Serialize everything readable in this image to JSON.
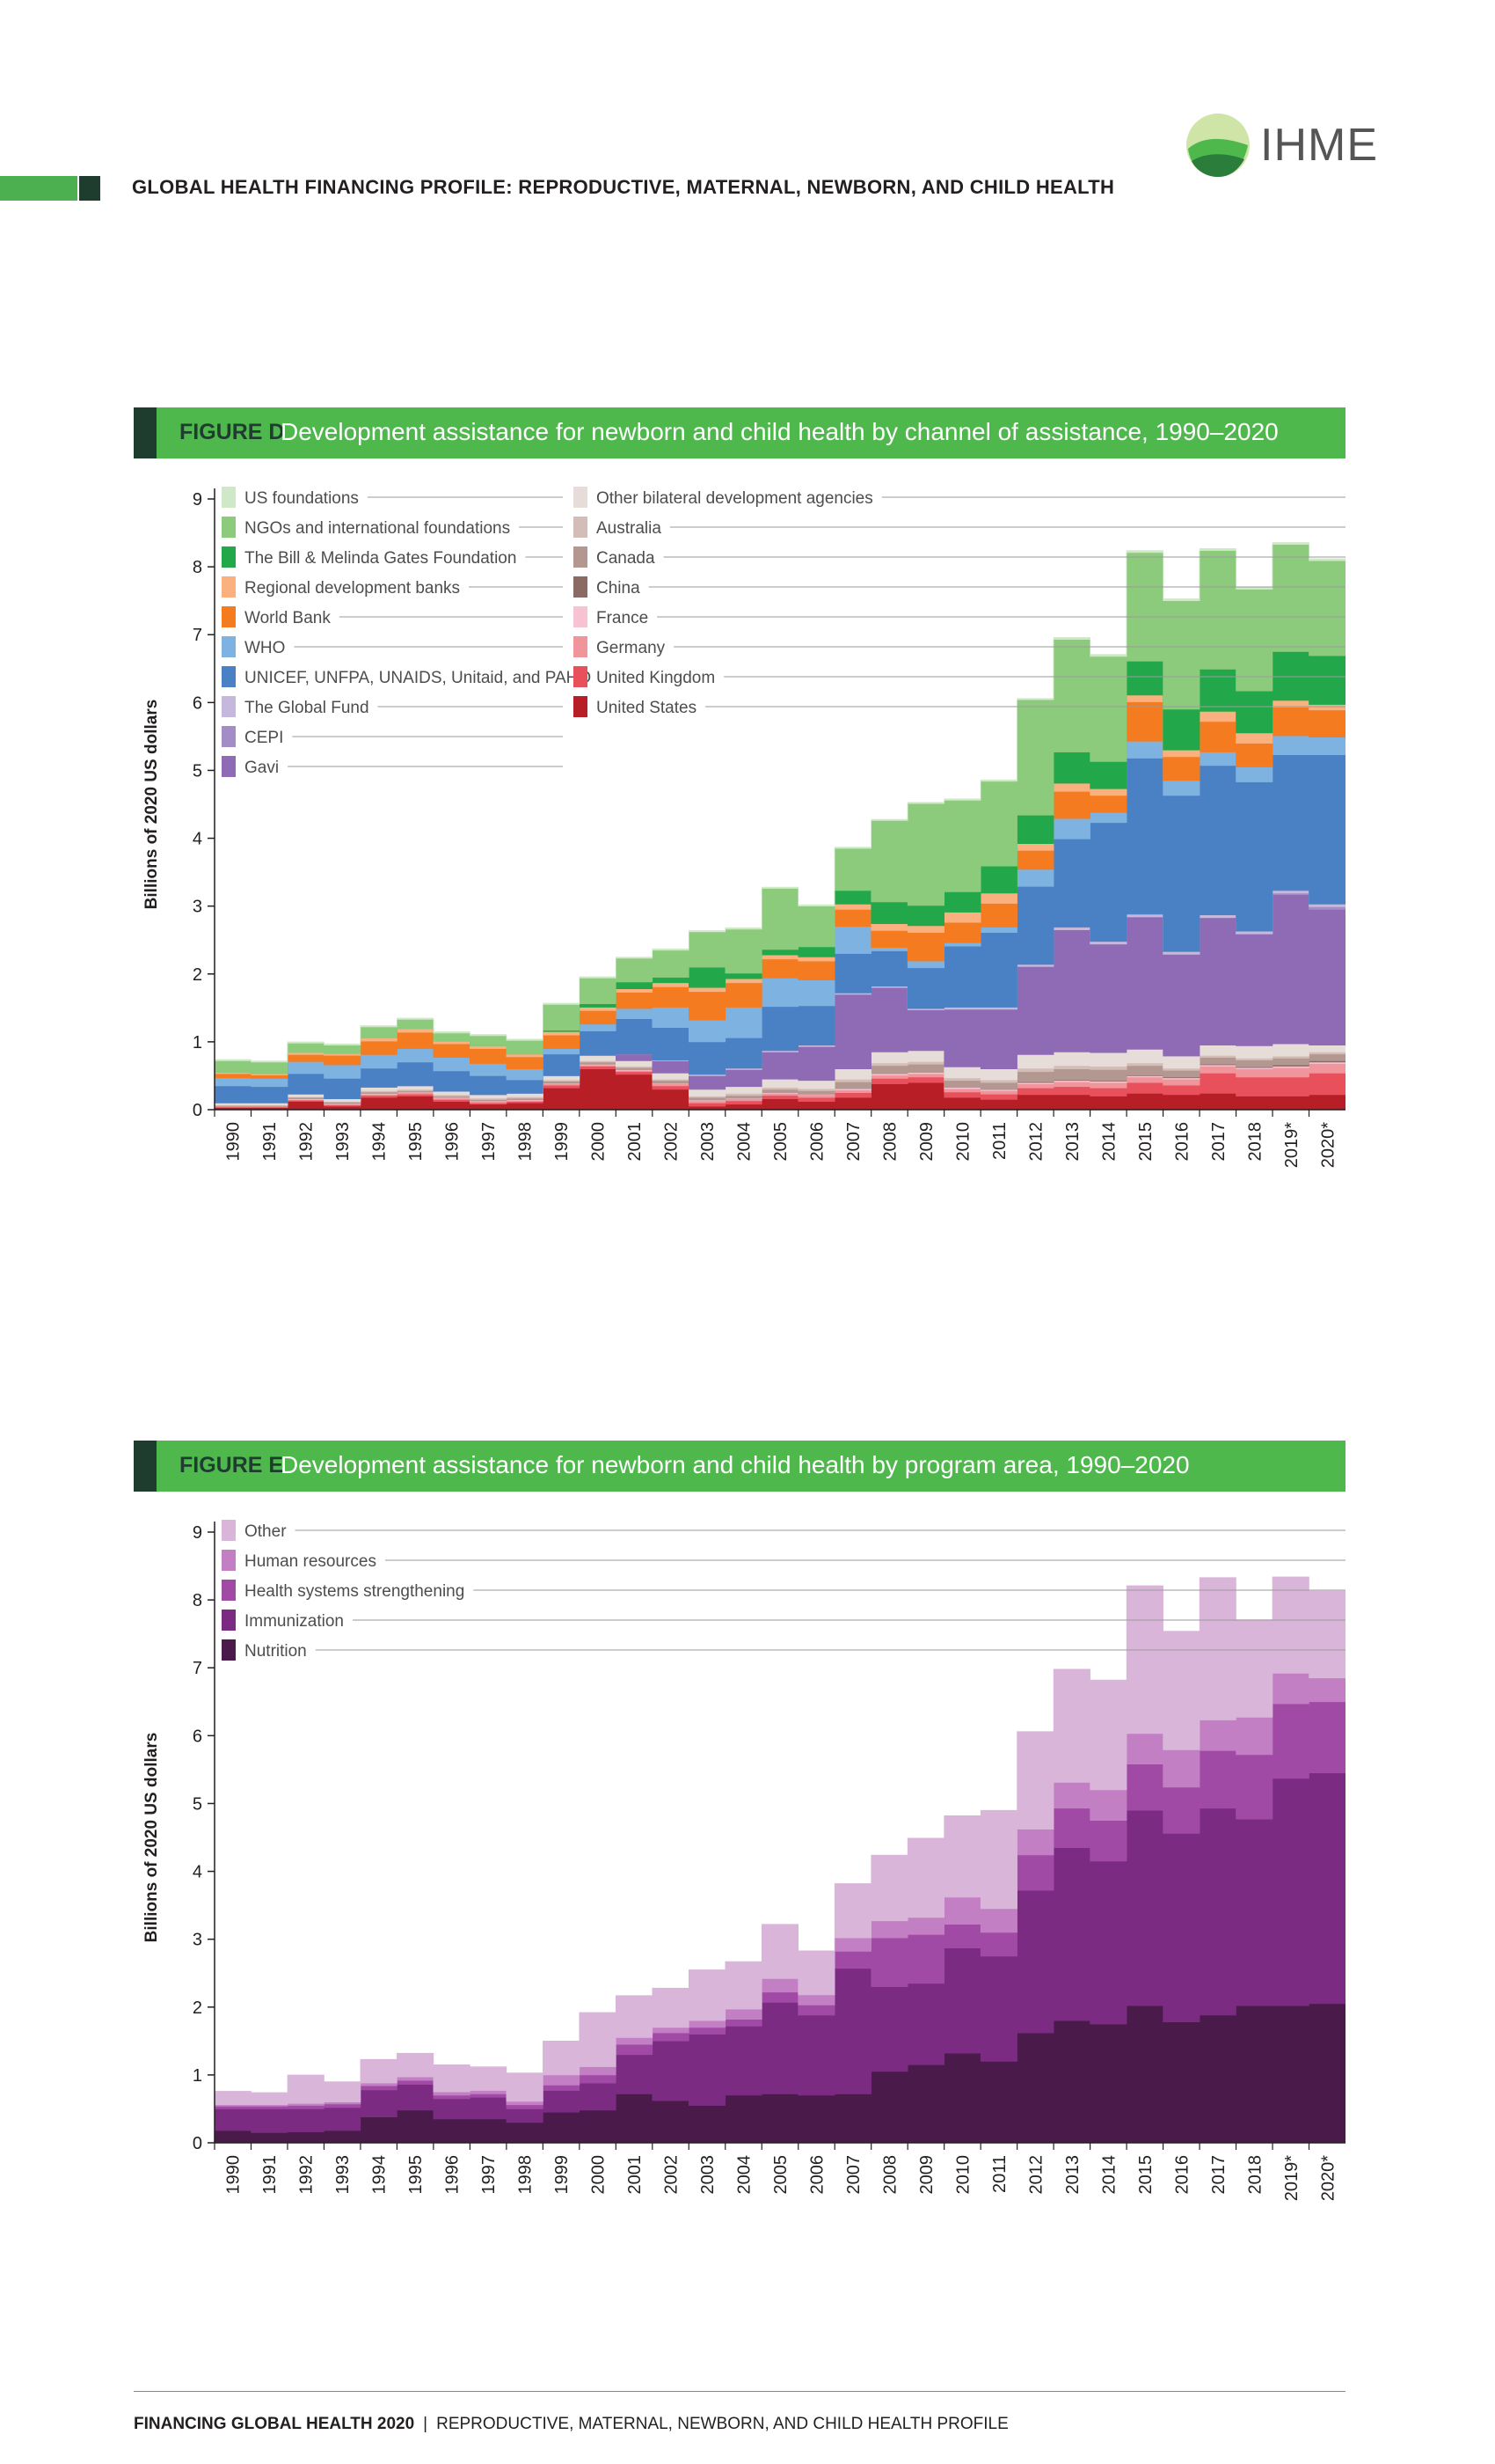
{
  "header": {
    "title": "GLOBAL HEALTH FINANCING PROFILE: REPRODUCTIVE, MATERNAL, NEWBORN, AND CHILD HEALTH",
    "logo_text": "IHME"
  },
  "footer": {
    "bold": "FINANCING GLOBAL HEALTH 2020",
    "separator": "|",
    "rest": "REPRODUCTIVE, MATERNAL, NEWBORN, AND CHILD HEALTH PROFILE"
  },
  "colors": {
    "brand_green": "#4fb84c",
    "dark_green": "#1e3d2f"
  },
  "figures": [
    {
      "label": "FIGURE D",
      "title": "Development assistance for newborn and child health by channel of assistance, 1990–2020"
    },
    {
      "label": "FIGURE E",
      "title": "Development assistance for newborn and child health by program area, 1990–2020"
    }
  ],
  "chart_data": [
    {
      "type": "area",
      "ylabel": "Billions of 2020 US dollars",
      "ylim": [
        0,
        9
      ],
      "yticks": [
        "0",
        "1",
        "2",
        "3",
        "4",
        "5",
        "6",
        "7",
        "8",
        "9"
      ],
      "categories": [
        "1990",
        "1991",
        "1992",
        "1993",
        "1994",
        "1995",
        "1996",
        "1997",
        "1998",
        "1999",
        "2000",
        "2001",
        "2002",
        "2003",
        "2004",
        "2005",
        "2006",
        "2007",
        "2008",
        "2009",
        "2010",
        "2011",
        "2012",
        "2013",
        "2014",
        "2015",
        "2016",
        "2017",
        "2018",
        "2019*",
        "2020*"
      ],
      "legend_columns": [
        [
          "US foundations",
          "NGOs and international foundations",
          "The Bill & Melinda Gates Foundation",
          "Regional development banks",
          "World Bank",
          "WHO",
          "UNICEF, UNFPA, UNAIDS, Unitaid, and PAHO",
          "The Global Fund",
          "CEPI",
          "Gavi"
        ],
        [
          "Other bilateral development agencies",
          "Australia",
          "Canada",
          "China",
          "France",
          "Germany",
          "United Kingdom",
          "United States"
        ]
      ],
      "series": [
        {
          "name": "United States",
          "color": "#b81e26",
          "values": [
            0.03,
            0.03,
            0.12,
            0.05,
            0.18,
            0.2,
            0.12,
            0.08,
            0.1,
            0.32,
            0.6,
            0.52,
            0.3,
            0.05,
            0.08,
            0.16,
            0.12,
            0.18,
            0.38,
            0.4,
            0.18,
            0.15,
            0.22,
            0.22,
            0.2,
            0.24,
            0.22,
            0.24,
            0.2,
            0.2,
            0.22
          ]
        },
        {
          "name": "United Kingdom",
          "color": "#e8505b",
          "values": [
            0.01,
            0.01,
            0.02,
            0.02,
            0.03,
            0.03,
            0.03,
            0.02,
            0.02,
            0.04,
            0.04,
            0.04,
            0.05,
            0.05,
            0.05,
            0.05,
            0.06,
            0.07,
            0.08,
            0.08,
            0.08,
            0.08,
            0.1,
            0.12,
            0.12,
            0.16,
            0.14,
            0.3,
            0.28,
            0.28,
            0.32
          ]
        },
        {
          "name": "Germany",
          "color": "#f0959c",
          "values": [
            0.01,
            0.01,
            0.01,
            0.01,
            0.02,
            0.02,
            0.02,
            0.02,
            0.02,
            0.02,
            0.02,
            0.02,
            0.03,
            0.03,
            0.03,
            0.03,
            0.04,
            0.04,
            0.05,
            0.05,
            0.05,
            0.05,
            0.06,
            0.07,
            0.08,
            0.08,
            0.09,
            0.1,
            0.12,
            0.14,
            0.14
          ]
        },
        {
          "name": "France",
          "color": "#f7c2d2",
          "values": [
            0.0,
            0.0,
            0.01,
            0.01,
            0.01,
            0.01,
            0.01,
            0.01,
            0.01,
            0.01,
            0.01,
            0.01,
            0.01,
            0.01,
            0.01,
            0.01,
            0.01,
            0.02,
            0.02,
            0.02,
            0.02,
            0.02,
            0.02,
            0.02,
            0.02,
            0.02,
            0.02,
            0.02,
            0.02,
            0.02,
            0.02
          ]
        },
        {
          "name": "China",
          "color": "#8a6a63",
          "values": [
            0,
            0,
            0,
            0,
            0,
            0,
            0,
            0,
            0,
            0,
            0,
            0,
            0,
            0,
            0,
            0,
            0,
            0,
            0,
            0,
            0,
            0,
            0.01,
            0.01,
            0.01,
            0.01,
            0.01,
            0.01,
            0.01,
            0.02,
            0.02
          ]
        },
        {
          "name": "Canada",
          "color": "#b39891",
          "values": [
            0.01,
            0.01,
            0.02,
            0.02,
            0.02,
            0.02,
            0.02,
            0.02,
            0.02,
            0.03,
            0.03,
            0.03,
            0.04,
            0.04,
            0.04,
            0.05,
            0.05,
            0.1,
            0.12,
            0.12,
            0.1,
            0.1,
            0.15,
            0.16,
            0.16,
            0.14,
            0.1,
            0.1,
            0.1,
            0.1,
            0.1
          ]
        },
        {
          "name": "Australia",
          "color": "#d4bdb7",
          "values": [
            0.01,
            0.01,
            0.01,
            0.01,
            0.02,
            0.02,
            0.02,
            0.02,
            0.02,
            0.02,
            0.02,
            0.02,
            0.02,
            0.02,
            0.03,
            0.03,
            0.03,
            0.04,
            0.04,
            0.04,
            0.04,
            0.04,
            0.05,
            0.05,
            0.05,
            0.04,
            0.03,
            0.03,
            0.03,
            0.03,
            0.03
          ]
        },
        {
          "name": "Other bilateral development agencies",
          "color": "#e6ddd9",
          "values": [
            0.03,
            0.03,
            0.04,
            0.04,
            0.05,
            0.05,
            0.05,
            0.05,
            0.05,
            0.06,
            0.08,
            0.08,
            0.09,
            0.1,
            0.1,
            0.12,
            0.12,
            0.15,
            0.16,
            0.16,
            0.16,
            0.16,
            0.2,
            0.2,
            0.2,
            0.2,
            0.18,
            0.15,
            0.18,
            0.18,
            0.1
          ]
        },
        {
          "name": "Gavi",
          "color": "#8f6bb5",
          "values": [
            0,
            0,
            0,
            0,
            0,
            0,
            0,
            0,
            0,
            0,
            0,
            0.1,
            0.18,
            0.2,
            0.25,
            0.4,
            0.5,
            1.1,
            0.95,
            0.6,
            0.85,
            0.88,
            1.3,
            1.8,
            1.6,
            1.95,
            1.5,
            1.88,
            1.65,
            2.2,
            2.0
          ]
        },
        {
          "name": "CEPI",
          "color": "#a48cc7",
          "values": [
            0,
            0,
            0,
            0,
            0,
            0,
            0,
            0,
            0,
            0,
            0,
            0,
            0,
            0,
            0,
            0,
            0,
            0,
            0,
            0,
            0,
            0,
            0,
            0,
            0,
            0,
            0,
            0,
            0,
            0.02,
            0.04
          ]
        },
        {
          "name": "The Global Fund",
          "color": "#c6b8dd",
          "values": [
            0,
            0,
            0,
            0,
            0,
            0,
            0,
            0,
            0,
            0,
            0,
            0,
            0.01,
            0.02,
            0.02,
            0.02,
            0.02,
            0.02,
            0.02,
            0.02,
            0.03,
            0.03,
            0.03,
            0.04,
            0.04,
            0.04,
            0.04,
            0.04,
            0.04,
            0.04,
            0.04
          ]
        },
        {
          "name": "UNICEF, UNFPA, UNAIDS, Unitaid, and PAHO",
          "color": "#4a81c4",
          "values": [
            0.25,
            0.24,
            0.3,
            0.3,
            0.28,
            0.35,
            0.3,
            0.28,
            0.2,
            0.32,
            0.36,
            0.52,
            0.48,
            0.48,
            0.45,
            0.65,
            0.58,
            0.58,
            0.52,
            0.6,
            0.9,
            1.1,
            1.15,
            1.3,
            1.75,
            2.3,
            2.3,
            2.2,
            2.2,
            2.0,
            2.2
          ]
        },
        {
          "name": "WHO",
          "color": "#7eb2e0",
          "values": [
            0.12,
            0.12,
            0.18,
            0.2,
            0.2,
            0.2,
            0.2,
            0.18,
            0.16,
            0.08,
            0.1,
            0.15,
            0.3,
            0.32,
            0.45,
            0.42,
            0.38,
            0.4,
            0.05,
            0.1,
            0.05,
            0.08,
            0.25,
            0.3,
            0.15,
            0.25,
            0.22,
            0.2,
            0.22,
            0.28,
            0.26
          ]
        },
        {
          "name": "World Bank",
          "color": "#f47b20",
          "values": [
            0.06,
            0.05,
            0.1,
            0.14,
            0.2,
            0.24,
            0.2,
            0.22,
            0.18,
            0.2,
            0.2,
            0.24,
            0.3,
            0.42,
            0.36,
            0.28,
            0.28,
            0.25,
            0.25,
            0.42,
            0.3,
            0.35,
            0.28,
            0.4,
            0.25,
            0.58,
            0.35,
            0.45,
            0.35,
            0.42,
            0.4
          ]
        },
        {
          "name": "Regional development banks",
          "color": "#fbb07f",
          "values": [
            0.02,
            0.02,
            0.03,
            0.03,
            0.05,
            0.05,
            0.04,
            0.04,
            0.04,
            0.05,
            0.05,
            0.05,
            0.06,
            0.06,
            0.06,
            0.06,
            0.06,
            0.08,
            0.1,
            0.1,
            0.15,
            0.15,
            0.1,
            0.12,
            0.1,
            0.1,
            0.1,
            0.15,
            0.15,
            0.1,
            0.08
          ]
        },
        {
          "name": "The Bill & Melinda Gates Foundation",
          "color": "#22a84a",
          "values": [
            0,
            0,
            0,
            0,
            0,
            0,
            0,
            0,
            0,
            0.02,
            0.05,
            0.1,
            0.08,
            0.3,
            0.08,
            0.08,
            0.15,
            0.2,
            0.32,
            0.3,
            0.3,
            0.4,
            0.42,
            0.46,
            0.4,
            0.5,
            0.6,
            0.62,
            0.62,
            0.72,
            0.72
          ]
        },
        {
          "name": "NGOs and international foundations",
          "color": "#8dcb7c",
          "values": [
            0.17,
            0.17,
            0.14,
            0.12,
            0.16,
            0.14,
            0.12,
            0.15,
            0.2,
            0.38,
            0.38,
            0.35,
            0.4,
            0.52,
            0.65,
            0.9,
            0.6,
            0.62,
            1.2,
            1.5,
            1.35,
            1.25,
            1.7,
            1.66,
            1.55,
            1.6,
            1.6,
            1.75,
            1.5,
            1.58,
            1.4
          ]
        },
        {
          "name": "US foundations",
          "color": "#cfe9c8",
          "values": [
            0.02,
            0.02,
            0.02,
            0.02,
            0.02,
            0.02,
            0.02,
            0.02,
            0.02,
            0.02,
            0.02,
            0.02,
            0.02,
            0.02,
            0.02,
            0.02,
            0.02,
            0.02,
            0.02,
            0.02,
            0.02,
            0.02,
            0.02,
            0.03,
            0.03,
            0.03,
            0.03,
            0.03,
            0.03,
            0.03,
            0.03
          ]
        }
      ]
    },
    {
      "type": "area",
      "ylabel": "Billions of 2020 US dollars",
      "ylim": [
        0,
        9
      ],
      "yticks": [
        "0",
        "1",
        "2",
        "3",
        "4",
        "5",
        "6",
        "7",
        "8",
        "9"
      ],
      "categories": [
        "1990",
        "1991",
        "1992",
        "1993",
        "1994",
        "1995",
        "1996",
        "1997",
        "1998",
        "1999",
        "2000",
        "2001",
        "2002",
        "2003",
        "2004",
        "2005",
        "2006",
        "2007",
        "2008",
        "2009",
        "2010",
        "2011",
        "2012",
        "2013",
        "2014",
        "2015",
        "2016",
        "2017",
        "2018",
        "2019*",
        "2020*"
      ],
      "legend_columns": [
        [
          "Other",
          "Human resources",
          "Health systems strengthening",
          "Immunization",
          "Nutrition"
        ]
      ],
      "series": [
        {
          "name": "Nutrition",
          "color": "#4a1a4a",
          "values": [
            0.18,
            0.15,
            0.16,
            0.18,
            0.38,
            0.48,
            0.35,
            0.35,
            0.3,
            0.45,
            0.48,
            0.72,
            0.62,
            0.55,
            0.7,
            0.72,
            0.7,
            0.72,
            1.05,
            1.15,
            1.32,
            1.2,
            1.62,
            1.8,
            1.75,
            2.02,
            1.78,
            1.88,
            2.02,
            2.02,
            2.05
          ]
        },
        {
          "name": "Immunization",
          "color": "#7b2c82",
          "values": [
            0.32,
            0.35,
            0.34,
            0.34,
            0.4,
            0.38,
            0.3,
            0.32,
            0.2,
            0.32,
            0.4,
            0.58,
            0.88,
            1.05,
            1.02,
            1.35,
            1.18,
            1.85,
            1.25,
            1.2,
            1.55,
            1.55,
            2.1,
            2.55,
            2.4,
            2.88,
            2.78,
            3.05,
            2.75,
            3.35,
            3.4
          ]
        },
        {
          "name": "Health systems strengthening",
          "color": "#a14aa5",
          "values": [
            0.04,
            0.04,
            0.05,
            0.05,
            0.06,
            0.06,
            0.05,
            0.05,
            0.06,
            0.08,
            0.12,
            0.15,
            0.12,
            0.1,
            0.1,
            0.15,
            0.15,
            0.25,
            0.72,
            0.72,
            0.35,
            0.35,
            0.52,
            0.58,
            0.6,
            0.68,
            0.68,
            0.85,
            0.95,
            1.1,
            1.05
          ]
        },
        {
          "name": "Human resources",
          "color": "#c27fc4",
          "values": [
            0.02,
            0.02,
            0.03,
            0.03,
            0.04,
            0.05,
            0.05,
            0.05,
            0.05,
            0.15,
            0.12,
            0.1,
            0.08,
            0.1,
            0.15,
            0.2,
            0.15,
            0.2,
            0.25,
            0.25,
            0.4,
            0.35,
            0.38,
            0.38,
            0.45,
            0.45,
            0.55,
            0.45,
            0.55,
            0.45,
            0.35
          ]
        },
        {
          "name": "Other",
          "color": "#d9b5d9",
          "values": [
            0.2,
            0.18,
            0.42,
            0.3,
            0.35,
            0.35,
            0.4,
            0.35,
            0.42,
            0.5,
            0.8,
            0.62,
            0.58,
            0.75,
            0.7,
            0.8,
            0.65,
            0.8,
            0.97,
            1.17,
            1.2,
            1.45,
            1.44,
            1.67,
            1.62,
            2.18,
            1.75,
            2.1,
            1.44,
            1.42,
            1.28
          ]
        }
      ]
    }
  ]
}
